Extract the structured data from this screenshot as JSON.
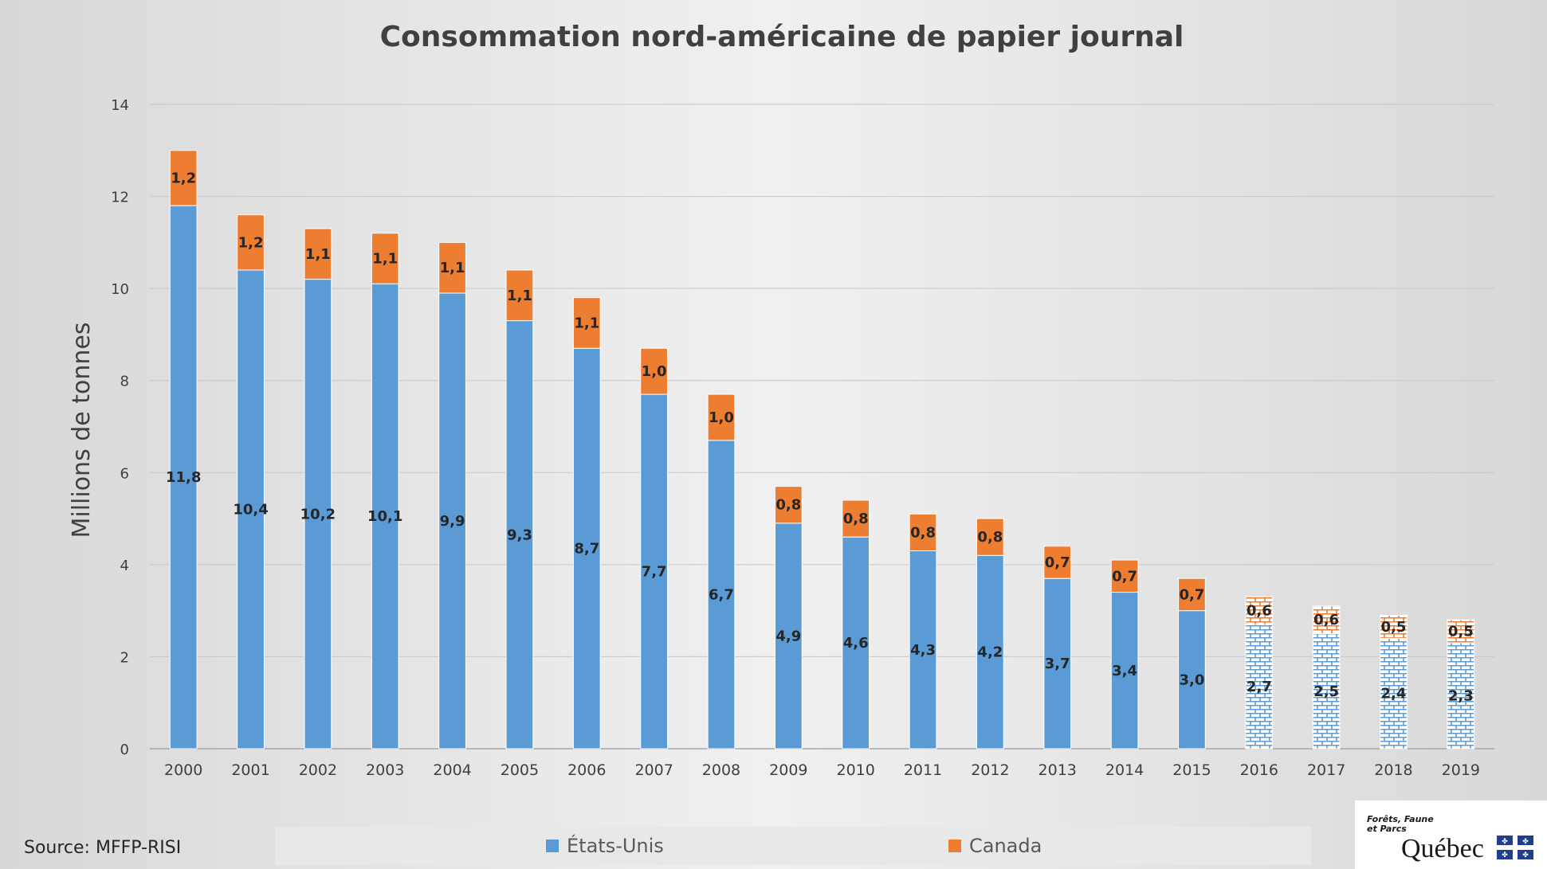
{
  "chart_data": {
    "type": "bar",
    "stacked": true,
    "title": "Consommation nord-américaine de papier journal",
    "ylabel": "Millions de tonnes",
    "xlabel": "",
    "ylim": [
      0,
      14
    ],
    "yticks": [
      0,
      2,
      4,
      6,
      8,
      10,
      12,
      14
    ],
    "grid": true,
    "legend_position": "bottom",
    "categories": [
      "2000",
      "2001",
      "2002",
      "2003",
      "2004",
      "2005",
      "2006",
      "2007",
      "2008",
      "2009",
      "2010",
      "2011",
      "2012",
      "2013",
      "2014",
      "2015",
      "2016",
      "2017",
      "2018",
      "2019"
    ],
    "forecast_categories": [
      "2016",
      "2017",
      "2018",
      "2019"
    ],
    "series": [
      {
        "name": "États-Unis",
        "color": "#5b9bd5",
        "values": [
          11.8,
          10.4,
          10.2,
          10.1,
          9.9,
          9.3,
          8.7,
          7.7,
          6.7,
          4.9,
          4.6,
          4.3,
          4.2,
          3.7,
          3.4,
          3.0,
          2.7,
          2.5,
          2.4,
          2.3
        ],
        "labels": [
          "11,8",
          "10,4",
          "10,2",
          "10,1",
          "9,9",
          "9,3",
          "8,7",
          "7,7",
          "6,7",
          "4,9",
          "4,6",
          "4,3",
          "4,2",
          "3,7",
          "3,4",
          "3,0",
          "2,7",
          "2,5",
          "2,4",
          "2,3"
        ]
      },
      {
        "name": "Canada",
        "color": "#ed7d31",
        "values": [
          1.2,
          1.2,
          1.1,
          1.1,
          1.1,
          1.1,
          1.1,
          1.0,
          1.0,
          0.8,
          0.8,
          0.8,
          0.8,
          0.7,
          0.7,
          0.7,
          0.6,
          0.6,
          0.5,
          0.5
        ],
        "labels": [
          "1,2",
          "1,2",
          "1,1",
          "1,1",
          "1,1",
          "1,1",
          "1,1",
          "1,0",
          "1,0",
          "0,8",
          "0,8",
          "0,8",
          "0,8",
          "0,7",
          "0,7",
          "0,7",
          "0,6",
          "0,6",
          "0,5",
          "0,5"
        ]
      }
    ]
  },
  "source": "Source: MFFP-RISI",
  "logo": {
    "line1": "Forêts, Faune",
    "line2": "et Parcs",
    "name": "Québec"
  }
}
